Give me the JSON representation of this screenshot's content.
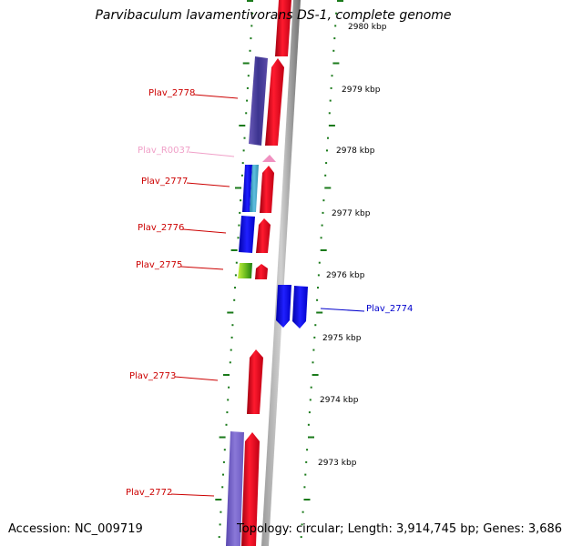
{
  "title": "Parvibaculum lavamentivorans DS-1, complete genome",
  "accession": "Accession: NC_009719",
  "topology": "Topology: circular; Length: 3,914,745 bp; Genes: 3,686",
  "colors": {
    "forward": "#e8001c",
    "reverse_dark": "#3a3590",
    "reverse_light": "#7060c8",
    "blue": "#1010e8",
    "teal": "#3aa0c0",
    "rna": "#f090c0",
    "green": "#6ec020",
    "backbone": "#808080",
    "ticks": "#1a7a1a"
  },
  "kbp_marks": [
    "2980 kbp",
    "2979 kbp",
    "2978 kbp",
    "2977 kbp",
    "2976 kbp",
    "2975 kbp",
    "2974 kbp",
    "2973 kbp"
  ],
  "genes": [
    {
      "label": "Plav_2778",
      "color": "#cc0000"
    },
    {
      "label": "Plav_R0037",
      "color": "#f0a0c8"
    },
    {
      "label": "Plav_2777",
      "color": "#cc0000"
    },
    {
      "label": "Plav_2776",
      "color": "#cc0000"
    },
    {
      "label": "Plav_2775",
      "color": "#cc0000"
    },
    {
      "label": "Plav_2774",
      "color": "#0000cc"
    },
    {
      "label": "Plav_2773",
      "color": "#cc0000"
    },
    {
      "label": "Plav_2772",
      "color": "#cc0000"
    }
  ]
}
